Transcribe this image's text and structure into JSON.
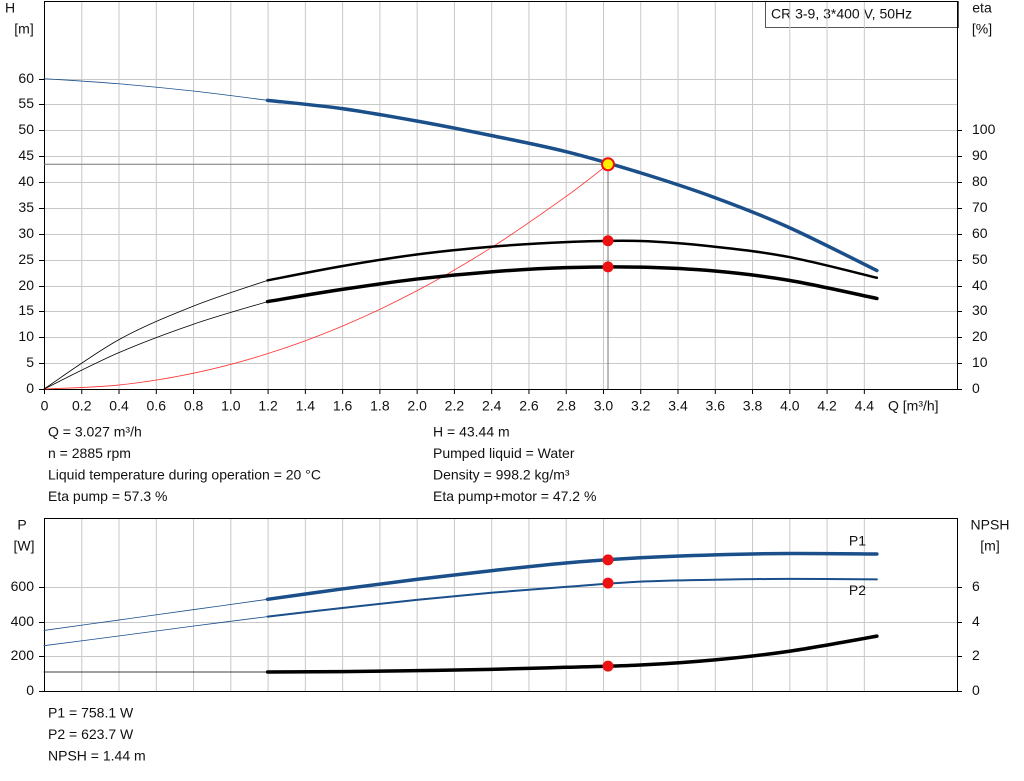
{
  "title": "CR 3-9, 3*400 V, 50Hz",
  "chart_data": [
    {
      "type": "line",
      "x_label": "Q [m³/h]",
      "y_label": "H",
      "y_unit": "[m]",
      "y2_label": "eta",
      "y2_unit": "[%]",
      "xlim": [
        0,
        4.9
      ],
      "xticks": [
        0,
        0.2,
        0.4,
        0.6,
        0.8,
        {
          "value": 1,
          "label": "1.0"
        },
        1.2,
        1.4,
        1.6,
        1.8,
        {
          "value": 2,
          "label": "2.0"
        },
        2.2,
        2.4,
        2.6,
        2.8,
        {
          "value": 3,
          "label": "3.0"
        },
        3.2,
        3.4,
        3.6,
        3.8,
        {
          "value": 4,
          "label": "4.0"
        },
        4.2,
        4.4
      ],
      "ylim": [
        0,
        75
      ],
      "yticks": [
        0,
        5,
        10,
        15,
        20,
        25,
        30,
        35,
        40,
        45,
        50,
        55,
        60
      ],
      "y2lim": [
        0,
        150
      ],
      "y2ticks": [
        0,
        10,
        20,
        30,
        40,
        50,
        60,
        70,
        80,
        90,
        100
      ],
      "grid": true,
      "thin_below": 1.2,
      "series": [
        {
          "color": "#1a4f8a",
          "width": 3.5,
          "x": [
            0,
            0.4,
            0.8,
            1.2,
            1.6,
            2.0,
            2.4,
            2.8,
            3.2,
            3.6,
            4.0,
            4.47
          ],
          "values": [
            60,
            59.0,
            57.6,
            55.8,
            54.2,
            51.8,
            49.0,
            45.9,
            41.8,
            37.0,
            31.2,
            22.9
          ]
        },
        {
          "color": "#000000",
          "width": 2.5,
          "axis": "y2",
          "x": [
            0,
            0.4,
            0.8,
            1.2,
            1.6,
            2.0,
            2.4,
            2.8,
            3.2,
            3.6,
            4.0,
            4.47
          ],
          "values": [
            0,
            19,
            32,
            42,
            47.5,
            52,
            55,
            56.8,
            57.2,
            55,
            51,
            43
          ]
        },
        {
          "color": "#000000",
          "width": 3.5,
          "axis": "y2",
          "x": [
            0,
            0.4,
            0.8,
            1.2,
            1.6,
            2.0,
            2.4,
            2.8,
            3.2,
            3.6,
            4.0,
            4.47
          ],
          "values": [
            0,
            14,
            25,
            33.8,
            38.5,
            42.5,
            45.3,
            46.9,
            47.1,
            45.6,
            42,
            35
          ]
        }
      ],
      "system_curve": {
        "color": "#ff3030",
        "x": [
          0,
          0.4,
          0.8,
          1.2,
          1.6,
          2.0,
          2.4,
          2.8,
          3.027
        ],
        "values": [
          0,
          0.76,
          3.03,
          6.83,
          12.14,
          18.96,
          27.31,
          37.17,
          43.44
        ]
      },
      "operating_point": {
        "x": 3.027,
        "y": 43.44
      },
      "duty_points": [
        {
          "x": 3.027,
          "value": 57.3,
          "axis": "y2"
        },
        {
          "x": 3.027,
          "value": 47.2,
          "axis": "y2"
        }
      ],
      "info_left": [
        "Q = 3.027 m³/h",
        "n = 2885 rpm",
        "Liquid temperature during operation = 20 °C",
        "Eta pump = 57.3 %"
      ],
      "info_right": [
        "H = 43.44 m",
        "Pumped liquid = Water",
        "Density = 998.2 kg/m³",
        "Eta pump+motor = 47.2 %"
      ]
    },
    {
      "type": "line",
      "y_label": "P",
      "y_unit": "[W]",
      "y2_label": "NPSH",
      "y2_unit": "[m]",
      "xlim": [
        0,
        4.9
      ],
      "ylim": [
        0,
        1000
      ],
      "yticks": [
        0,
        200,
        400,
        600
      ],
      "y2lim": [
        0,
        10
      ],
      "y2ticks": [
        0,
        2,
        4,
        6
      ],
      "grid": true,
      "thin_below": 1.2,
      "series": [
        {
          "name": "P1",
          "color": "#1a4f8a",
          "width": 3.5,
          "x": [
            0,
            0.4,
            0.8,
            1.2,
            1.6,
            2.0,
            2.4,
            2.8,
            3.2,
            3.6,
            4.0,
            4.47
          ],
          "values": [
            350,
            410,
            470,
            530,
            590,
            645,
            695,
            740,
            770,
            787,
            795,
            792
          ]
        },
        {
          "name": "P2",
          "color": "#1a4f8a",
          "width": 2,
          "x": [
            0,
            0.4,
            0.8,
            1.2,
            1.6,
            2.0,
            2.4,
            2.8,
            3.2,
            3.6,
            4.0,
            4.47
          ],
          "values": [
            262,
            318,
            375,
            430,
            480,
            527,
            568,
            602,
            632,
            643,
            648,
            645
          ]
        },
        {
          "color": "#000000",
          "width": 3.5,
          "axis": "y2",
          "x": [
            0,
            0.4,
            0.8,
            1.2,
            1.6,
            2.0,
            2.4,
            2.8,
            3.2,
            3.6,
            4.0,
            4.47
          ],
          "values": [
            1.1,
            1.1,
            1.1,
            1.1,
            1.12,
            1.18,
            1.25,
            1.37,
            1.5,
            1.8,
            2.3,
            3.17
          ]
        }
      ],
      "duty_points": [
        {
          "x": 3.027,
          "value": 758.1
        },
        {
          "x": 3.027,
          "value": 623.7
        },
        {
          "x": 3.027,
          "value": 1.44,
          "axis": "y2"
        }
      ],
      "info_left": [
        "P1 = 758.1 W",
        "P2 = 623.7 W",
        "NPSH = 1.44 m"
      ]
    }
  ]
}
